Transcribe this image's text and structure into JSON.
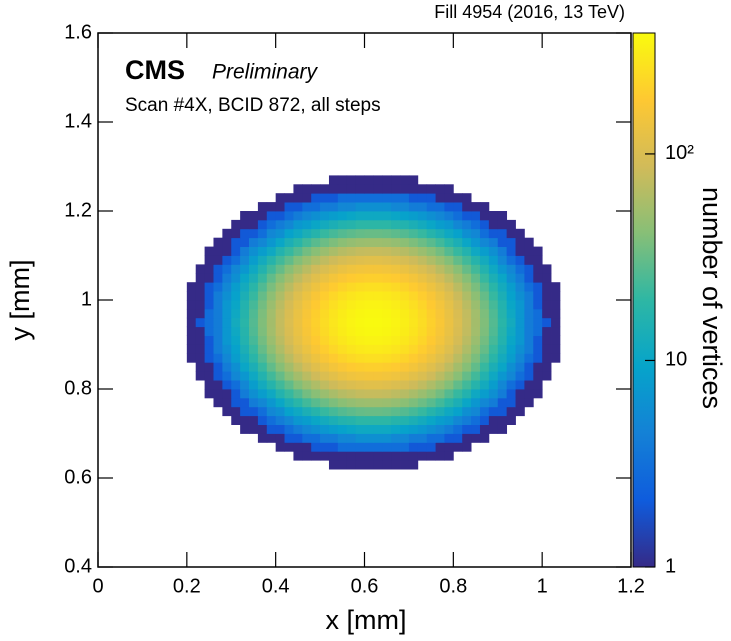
{
  "chart_data": {
    "type": "heatmap",
    "title": "Fill 4954 (2016, 13 TeV)",
    "annotations": [
      "CMS",
      "Preliminary",
      "Scan #4X, BCID 872, all steps"
    ],
    "xlabel": "x [mm]",
    "ylabel": "y [mm]",
    "zlabel": "number of vertices",
    "xlim": [
      0,
      1.2
    ],
    "xticks": [
      0,
      0.2,
      0.4,
      0.6,
      0.8,
      1,
      1.2
    ],
    "ylim": [
      0.4,
      1.6
    ],
    "yticks": [
      0.4,
      0.6,
      0.8,
      1,
      1.2,
      1.4,
      1.6
    ],
    "zlim": [
      1,
      385
    ],
    "zscale": "log",
    "zticks": [
      1,
      10,
      {
        "value": 100,
        "label": "10²"
      }
    ],
    "colormap": [
      "#352a87",
      "#0f5cdd",
      "#1481d6",
      "#06a4ca",
      "#2eb7a4",
      "#87bf77",
      "#d1bb59",
      "#fec832",
      "#f9fb0e"
    ],
    "xbins": [
      0.18,
      0.2,
      0.22,
      0.24,
      0.26,
      0.28,
      0.3,
      0.32,
      0.34,
      0.36,
      0.38,
      0.4,
      0.42,
      0.44,
      0.46,
      0.48,
      0.5,
      0.52,
      0.54,
      0.56,
      0.58,
      0.6,
      0.62,
      0.64,
      0.66,
      0.68,
      0.7,
      0.72,
      0.74,
      0.76,
      0.78,
      0.8,
      0.82,
      0.84,
      0.86,
      0.88,
      0.9,
      0.92,
      0.94,
      0.96,
      0.98,
      1,
      1.02,
      1.04,
      1.06
    ],
    "ybins": [
      0.62,
      0.64,
      0.66,
      0.68,
      0.7,
      0.72,
      0.74,
      0.76,
      0.78,
      0.8,
      0.82,
      0.84,
      0.86,
      0.88,
      0.9,
      0.92,
      0.94,
      0.96,
      0.98,
      1,
      1.02,
      1.04,
      1.06,
      1.08,
      1.1,
      1.12,
      1.14,
      1.16,
      1.18,
      1.2,
      1.22,
      1.24,
      1.26,
      1.28
    ],
    "values": [
      [
        0,
        0,
        0,
        0,
        0,
        0,
        0,
        0,
        0,
        0,
        0,
        0,
        0,
        0,
        0,
        0,
        0,
        1,
        1,
        1,
        1,
        1,
        1,
        1,
        1,
        1,
        1,
        0,
        0,
        0,
        0,
        0,
        0,
        0,
        0,
        0,
        0,
        0,
        0,
        0,
        0,
        0,
        0,
        0
      ],
      [
        0,
        0,
        0,
        0,
        0,
        0,
        0,
        0,
        0,
        0,
        0,
        0,
        0,
        1,
        1,
        1,
        1,
        1,
        1,
        1,
        1,
        1,
        1,
        1,
        1,
        1,
        1,
        1,
        1,
        1,
        1,
        0,
        0,
        0,
        0,
        0,
        0,
        0,
        0,
        0,
        0,
        0,
        0,
        0
      ],
      [
        0,
        0,
        0,
        0,
        0,
        0,
        0,
        0,
        0,
        0,
        0,
        1,
        1,
        1,
        1,
        2,
        2,
        2,
        3,
        3,
        3,
        3,
        3,
        3,
        3,
        3,
        2,
        2,
        2,
        1,
        1,
        1,
        1,
        0,
        0,
        0,
        0,
        0,
        0,
        0,
        0,
        0,
        0,
        0
      ],
      [
        0,
        0,
        0,
        0,
        0,
        0,
        0,
        0,
        0,
        1,
        1,
        1,
        2,
        2,
        3,
        3,
        4,
        4,
        5,
        5,
        6,
        6,
        6,
        6,
        5,
        5,
        4,
        4,
        3,
        3,
        2,
        2,
        1,
        1,
        1,
        0,
        0,
        0,
        0,
        0,
        0,
        0,
        0,
        0
      ],
      [
        0,
        0,
        0,
        0,
        0,
        0,
        0,
        1,
        1,
        1,
        2,
        2,
        3,
        4,
        5,
        6,
        7,
        8,
        9,
        10,
        11,
        11,
        11,
        11,
        10,
        9,
        8,
        7,
        6,
        5,
        4,
        3,
        2,
        2,
        1,
        1,
        1,
        0,
        0,
        0,
        0,
        0,
        0,
        0
      ],
      [
        0,
        0,
        0,
        0,
        0,
        0,
        1,
        1,
        1,
        2,
        3,
        4,
        5,
        7,
        8,
        10,
        12,
        14,
        16,
        17,
        19,
        19,
        19,
        19,
        17,
        16,
        14,
        12,
        10,
        8,
        7,
        5,
        4,
        3,
        2,
        1,
        1,
        1,
        0,
        0,
        0,
        0,
        0,
        0
      ],
      [
        0,
        0,
        0,
        0,
        0,
        1,
        1,
        2,
        2,
        3,
        5,
        6,
        9,
        11,
        14,
        17,
        21,
        24,
        27,
        29,
        31,
        32,
        32,
        31,
        29,
        27,
        24,
        21,
        17,
        14,
        11,
        9,
        6,
        5,
        3,
        2,
        2,
        1,
        1,
        0,
        0,
        0,
        0,
        0
      ],
      [
        0,
        0,
        0,
        0,
        1,
        1,
        2,
        2,
        4,
        5,
        7,
        10,
        14,
        18,
        23,
        28,
        33,
        38,
        43,
        47,
        50,
        51,
        51,
        50,
        47,
        43,
        38,
        33,
        28,
        23,
        18,
        14,
        10,
        7,
        5,
        4,
        2,
        2,
        1,
        1,
        0,
        0,
        0,
        0
      ],
      [
        0,
        0,
        0,
        1,
        1,
        1,
        2,
        4,
        6,
        8,
        11,
        16,
        21,
        27,
        35,
        42,
        50,
        58,
        66,
        71,
        76,
        78,
        78,
        76,
        71,
        66,
        58,
        50,
        42,
        35,
        27,
        21,
        16,
        11,
        8,
        6,
        4,
        2,
        1,
        1,
        1,
        0,
        0,
        0
      ],
      [
        0,
        0,
        0,
        1,
        1,
        2,
        3,
        5,
        8,
        12,
        17,
        23,
        30,
        40,
        50,
        61,
        73,
        84,
        95,
        103,
        110,
        113,
        113,
        110,
        103,
        95,
        84,
        73,
        61,
        50,
        40,
        30,
        23,
        17,
        12,
        8,
        5,
        3,
        2,
        1,
        1,
        0,
        0,
        0
      ],
      [
        0,
        0,
        1,
        1,
        2,
        3,
        5,
        7,
        11,
        16,
        23,
        31,
        42,
        55,
        69,
        85,
        101,
        116,
        131,
        143,
        151,
        156,
        156,
        151,
        143,
        131,
        116,
        101,
        85,
        69,
        55,
        42,
        31,
        23,
        16,
        11,
        7,
        5,
        3,
        2,
        1,
        1,
        0,
        0
      ],
      [
        0,
        0,
        1,
        1,
        2,
        4,
        6,
        10,
        14,
        21,
        30,
        41,
        55,
        72,
        90,
        111,
        132,
        153,
        171,
        187,
        198,
        204,
        204,
        198,
        187,
        171,
        153,
        132,
        111,
        90,
        72,
        55,
        41,
        30,
        21,
        14,
        10,
        6,
        4,
        2,
        1,
        1,
        0,
        0
      ],
      [
        0,
        1,
        1,
        2,
        3,
        5,
        8,
        12,
        18,
        26,
        37,
        51,
        69,
        90,
        113,
        139,
        165,
        191,
        214,
        234,
        248,
        255,
        255,
        248,
        234,
        214,
        191,
        165,
        139,
        113,
        90,
        69,
        51,
        37,
        26,
        18,
        12,
        8,
        5,
        3,
        2,
        1,
        1,
        0
      ],
      [
        0,
        1,
        1,
        2,
        4,
        6,
        9,
        14,
        21,
        31,
        44,
        61,
        82,
        107,
        134,
        165,
        196,
        227,
        255,
        278,
        295,
        303,
        303,
        295,
        278,
        255,
        227,
        196,
        165,
        134,
        107,
        82,
        61,
        44,
        31,
        21,
        14,
        9,
        6,
        4,
        2,
        1,
        1,
        0
      ],
      [
        0,
        1,
        1,
        2,
        4,
        7,
        10,
        16,
        24,
        35,
        50,
        69,
        93,
        121,
        152,
        186,
        222,
        257,
        288,
        314,
        333,
        343,
        343,
        333,
        314,
        288,
        257,
        222,
        186,
        152,
        121,
        93,
        69,
        50,
        35,
        24,
        16,
        10,
        7,
        4,
        2,
        1,
        1,
        0
      ],
      [
        0,
        1,
        1,
        3,
        4,
        7,
        11,
        17,
        26,
        38,
        54,
        75,
        100,
        130,
        164,
        201,
        239,
        276,
        310,
        339,
        359,
        369,
        369,
        359,
        339,
        310,
        276,
        239,
        201,
        164,
        130,
        100,
        75,
        54,
        38,
        26,
        17,
        11,
        7,
        4,
        3,
        1,
        1,
        0
      ],
      [
        0,
        1,
        2,
        3,
        4,
        7,
        12,
        18,
        27,
        39,
        55,
        76,
        102,
        133,
        168,
        206,
        245,
        283,
        318,
        347,
        368,
        378,
        378,
        368,
        347,
        318,
        283,
        245,
        206,
        168,
        133,
        102,
        76,
        55,
        39,
        27,
        18,
        12,
        7,
        4,
        3,
        2,
        1,
        0
      ],
      [
        0,
        1,
        1,
        3,
        4,
        7,
        11,
        17,
        26,
        38,
        54,
        75,
        100,
        130,
        164,
        201,
        239,
        276,
        310,
        339,
        359,
        369,
        369,
        359,
        339,
        310,
        276,
        239,
        201,
        164,
        130,
        100,
        75,
        54,
        38,
        26,
        17,
        11,
        7,
        4,
        3,
        1,
        1,
        0
      ],
      [
        0,
        1,
        1,
        2,
        4,
        7,
        10,
        16,
        24,
        35,
        50,
        69,
        93,
        121,
        152,
        186,
        222,
        257,
        288,
        314,
        333,
        343,
        343,
        333,
        314,
        288,
        257,
        222,
        186,
        152,
        121,
        93,
        69,
        50,
        35,
        24,
        16,
        10,
        7,
        4,
        2,
        1,
        1,
        0
      ],
      [
        0,
        1,
        1,
        2,
        4,
        6,
        9,
        14,
        21,
        31,
        44,
        61,
        82,
        107,
        134,
        165,
        196,
        227,
        255,
        278,
        295,
        303,
        303,
        295,
        278,
        255,
        227,
        196,
        165,
        134,
        107,
        82,
        61,
        44,
        31,
        21,
        14,
        9,
        6,
        4,
        2,
        1,
        1,
        0
      ],
      [
        0,
        1,
        1,
        2,
        3,
        5,
        8,
        12,
        18,
        26,
        37,
        51,
        69,
        90,
        113,
        139,
        165,
        191,
        214,
        234,
        248,
        255,
        255,
        248,
        234,
        214,
        191,
        165,
        139,
        113,
        90,
        69,
        51,
        37,
        26,
        18,
        12,
        8,
        5,
        3,
        2,
        1,
        1,
        0
      ],
      [
        0,
        0,
        1,
        1,
        2,
        4,
        6,
        10,
        14,
        21,
        30,
        41,
        55,
        72,
        90,
        111,
        132,
        153,
        171,
        187,
        198,
        204,
        204,
        198,
        187,
        171,
        153,
        132,
        111,
        90,
        72,
        55,
        41,
        30,
        21,
        14,
        10,
        6,
        4,
        2,
        1,
        1,
        0,
        0
      ],
      [
        0,
        0,
        1,
        1,
        2,
        3,
        5,
        7,
        11,
        16,
        23,
        31,
        42,
        55,
        69,
        85,
        101,
        116,
        131,
        143,
        151,
        156,
        156,
        151,
        143,
        131,
        116,
        101,
        85,
        69,
        55,
        42,
        31,
        23,
        16,
        11,
        7,
        5,
        3,
        2,
        1,
        1,
        0,
        0
      ],
      [
        0,
        0,
        0,
        1,
        1,
        2,
        3,
        5,
        8,
        12,
        17,
        23,
        30,
        40,
        50,
        61,
        73,
        84,
        95,
        103,
        110,
        113,
        113,
        110,
        103,
        95,
        84,
        73,
        61,
        50,
        40,
        30,
        23,
        17,
        12,
        8,
        5,
        3,
        2,
        1,
        1,
        0,
        0,
        0
      ],
      [
        0,
        0,
        0,
        1,
        1,
        1,
        2,
        4,
        6,
        8,
        11,
        16,
        21,
        27,
        35,
        42,
        50,
        58,
        66,
        71,
        76,
        78,
        78,
        76,
        71,
        66,
        58,
        50,
        42,
        35,
        27,
        21,
        16,
        11,
        8,
        6,
        4,
        2,
        1,
        1,
        1,
        0,
        0,
        0
      ],
      [
        0,
        0,
        0,
        0,
        1,
        1,
        2,
        2,
        4,
        5,
        7,
        10,
        14,
        18,
        23,
        28,
        33,
        38,
        43,
        47,
        50,
        51,
        51,
        50,
        47,
        43,
        38,
        33,
        28,
        23,
        18,
        14,
        10,
        7,
        5,
        4,
        2,
        2,
        1,
        1,
        0,
        0,
        0,
        0
      ],
      [
        0,
        0,
        0,
        0,
        0,
        1,
        1,
        2,
        2,
        3,
        5,
        6,
        9,
        11,
        14,
        17,
        21,
        24,
        27,
        29,
        31,
        32,
        32,
        31,
        29,
        27,
        24,
        21,
        17,
        14,
        11,
        9,
        6,
        5,
        3,
        2,
        2,
        1,
        1,
        0,
        0,
        0,
        0,
        0
      ],
      [
        0,
        0,
        0,
        0,
        0,
        0,
        1,
        1,
        1,
        2,
        3,
        4,
        5,
        7,
        8,
        10,
        12,
        14,
        16,
        17,
        19,
        19,
        19,
        19,
        17,
        16,
        14,
        12,
        10,
        8,
        7,
        5,
        4,
        3,
        2,
        1,
        1,
        1,
        0,
        0,
        0,
        0,
        0,
        0
      ],
      [
        0,
        0,
        0,
        0,
        0,
        0,
        0,
        1,
        1,
        1,
        2,
        2,
        3,
        4,
        5,
        6,
        7,
        8,
        9,
        10,
        11,
        11,
        11,
        11,
        10,
        9,
        8,
        7,
        6,
        5,
        4,
        3,
        2,
        2,
        1,
        1,
        1,
        0,
        0,
        0,
        0,
        0,
        0,
        0
      ],
      [
        0,
        0,
        0,
        0,
        0,
        0,
        0,
        0,
        0,
        1,
        1,
        1,
        2,
        2,
        3,
        3,
        4,
        4,
        5,
        5,
        6,
        6,
        6,
        6,
        5,
        5,
        4,
        4,
        3,
        3,
        2,
        2,
        1,
        1,
        1,
        0,
        0,
        0,
        0,
        0,
        0,
        0,
        0,
        0
      ],
      [
        0,
        0,
        0,
        0,
        0,
        0,
        0,
        0,
        0,
        0,
        0,
        1,
        1,
        1,
        1,
        2,
        2,
        2,
        3,
        3,
        3,
        3,
        3,
        3,
        3,
        3,
        2,
        2,
        2,
        1,
        1,
        1,
        1,
        0,
        0,
        0,
        0,
        0,
        0,
        0,
        0,
        0,
        0,
        0
      ],
      [
        0,
        0,
        0,
        0,
        0,
        0,
        0,
        0,
        0,
        0,
        0,
        0,
        0,
        1,
        1,
        1,
        1,
        1,
        1,
        1,
        1,
        1,
        1,
        1,
        1,
        1,
        1,
        1,
        1,
        1,
        1,
        0,
        0,
        0,
        0,
        0,
        0,
        0,
        0,
        0,
        0,
        0,
        0,
        0
      ],
      [
        0,
        0,
        0,
        0,
        0,
        0,
        0,
        0,
        0,
        0,
        0,
        0,
        0,
        0,
        0,
        0,
        0,
        1,
        1,
        1,
        1,
        1,
        1,
        1,
        1,
        1,
        1,
        0,
        0,
        0,
        0,
        0,
        0,
        0,
        0,
        0,
        0,
        0,
        0,
        0,
        0,
        0,
        0,
        0
      ]
    ]
  }
}
